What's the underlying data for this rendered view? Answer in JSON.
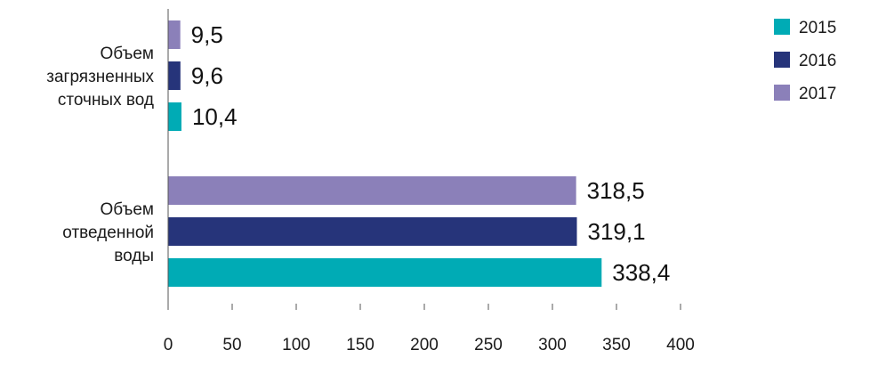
{
  "chart_data": {
    "type": "bar",
    "orientation": "horizontal",
    "categories": [
      [
        "Объем",
        "загрязненных",
        "сточных вод"
      ],
      [
        "Объем",
        "отведенной",
        "воды"
      ]
    ],
    "series": [
      {
        "name": "2017",
        "values": [
          9.5,
          318.5
        ],
        "labels": [
          "9,5",
          "318,5"
        ],
        "color": "#8b80b9"
      },
      {
        "name": "2016",
        "values": [
          9.6,
          319.1
        ],
        "labels": [
          "9,6",
          "319,1"
        ],
        "color": "#26347a"
      },
      {
        "name": "2015",
        "values": [
          10.4,
          338.4
        ],
        "labels": [
          "10,4",
          "338,4"
        ],
        "color": "#00abb5"
      }
    ],
    "xlim": [
      0,
      400
    ],
    "xticks": [
      "0",
      "50",
      "100",
      "150",
      "200",
      "250",
      "300",
      "350",
      "400"
    ],
    "legend": {
      "position": "top-right",
      "entries": [
        {
          "label": "2015",
          "color": "#00abb5"
        },
        {
          "label": "2016",
          "color": "#26347a"
        },
        {
          "label": "2017",
          "color": "#8b80b9"
        }
      ]
    },
    "axis_color": "#555555"
  }
}
